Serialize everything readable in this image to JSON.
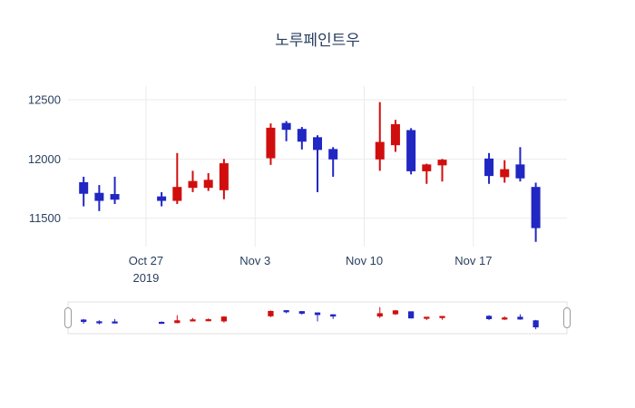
{
  "chart_data": {
    "type": "candlestick",
    "title": "노루페인트우",
    "legend": false,
    "grid": true,
    "rangeslider": true,
    "increasing_color": "#d10e0e",
    "decreasing_color": "#2127c2",
    "grid_color": "#ebebeb",
    "tick_color": "#2a3f5f",
    "x_range": [
      "2019-10-22",
      "2019-11-23"
    ],
    "y_range": [
      11260,
      12615
    ],
    "y_ticks": [
      {
        "value": 11500,
        "label": "11500"
      },
      {
        "value": 12000,
        "label": "12000"
      },
      {
        "value": 12500,
        "label": "12500"
      }
    ],
    "x_ticks": [
      {
        "date": "2019-10-27",
        "label": "Oct 27",
        "sub": "2019"
      },
      {
        "date": "2019-11-03",
        "label": "Nov 3",
        "sub": ""
      },
      {
        "date": "2019-11-10",
        "label": "Nov 10",
        "sub": ""
      },
      {
        "date": "2019-11-17",
        "label": "Nov 17",
        "sub": ""
      }
    ],
    "candles": [
      {
        "date": "2019-10-23",
        "open": 11800,
        "high": 11850,
        "low": 11600,
        "close": 11710
      },
      {
        "date": "2019-10-24",
        "open": 11710,
        "high": 11780,
        "low": 11560,
        "close": 11650
      },
      {
        "date": "2019-10-25",
        "open": 11700,
        "high": 11850,
        "low": 11620,
        "close": 11660
      },
      {
        "date": "2019-10-28",
        "open": 11680,
        "high": 11720,
        "low": 11600,
        "close": 11650
      },
      {
        "date": "2019-10-29",
        "open": 11650,
        "high": 12050,
        "low": 11620,
        "close": 11760
      },
      {
        "date": "2019-10-30",
        "open": 11760,
        "high": 11900,
        "low": 11720,
        "close": 11810
      },
      {
        "date": "2019-10-31",
        "open": 11760,
        "high": 11880,
        "low": 11730,
        "close": 11820
      },
      {
        "date": "2019-11-01",
        "open": 11740,
        "high": 12000,
        "low": 11660,
        "close": 11960
      },
      {
        "date": "2019-11-04",
        "open": 12010,
        "high": 12300,
        "low": 11950,
        "close": 12260
      },
      {
        "date": "2019-11-05",
        "open": 12300,
        "high": 12320,
        "low": 12150,
        "close": 12250
      },
      {
        "date": "2019-11-06",
        "open": 12250,
        "high": 12270,
        "low": 12080,
        "close": 12150
      },
      {
        "date": "2019-11-07",
        "open": 12180,
        "high": 12200,
        "low": 11720,
        "close": 12080
      },
      {
        "date": "2019-11-08",
        "open": 12080,
        "high": 12100,
        "low": 11850,
        "close": 12000
      },
      {
        "date": "2019-11-11",
        "open": 12000,
        "high": 12480,
        "low": 11900,
        "close": 12140
      },
      {
        "date": "2019-11-12",
        "open": 12120,
        "high": 12330,
        "low": 12060,
        "close": 12290
      },
      {
        "date": "2019-11-13",
        "open": 12240,
        "high": 12260,
        "low": 11870,
        "close": 11900
      },
      {
        "date": "2019-11-14",
        "open": 11900,
        "high": 11960,
        "low": 11790,
        "close": 11950
      },
      {
        "date": "2019-11-15",
        "open": 11950,
        "high": 12000,
        "low": 11810,
        "close": 11990
      },
      {
        "date": "2019-11-18",
        "open": 12000,
        "high": 12050,
        "low": 11790,
        "close": 11860
      },
      {
        "date": "2019-11-19",
        "open": 11850,
        "high": 11990,
        "low": 11800,
        "close": 11910
      },
      {
        "date": "2019-11-20",
        "open": 11950,
        "high": 12100,
        "low": 11810,
        "close": 11840
      },
      {
        "date": "2019-11-21",
        "open": 11760,
        "high": 11800,
        "low": 11300,
        "close": 11420
      }
    ]
  }
}
